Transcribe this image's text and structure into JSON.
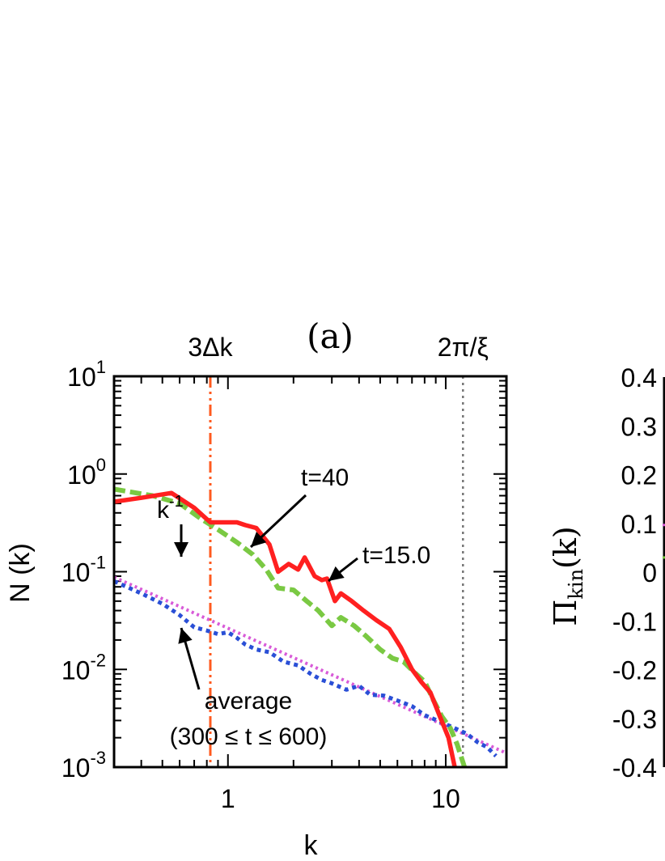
{
  "chart_data": [
    {
      "type": "line",
      "panel_label": "(a)",
      "xlabel": "k",
      "ylabel": "N (k)",
      "xscale": "log",
      "yscale": "log",
      "xlim": [
        0.3,
        19
      ],
      "ylim": [
        0.001,
        10
      ],
      "x_ticks": [
        {
          "value": 1,
          "label": "1"
        },
        {
          "value": 10,
          "label": "10"
        }
      ],
      "y_ticks": [
        {
          "value": 10,
          "base": "10",
          "exp": "1"
        },
        {
          "value": 1,
          "base": "10",
          "exp": "0"
        },
        {
          "value": 0.1,
          "base": "10",
          "exp": "-1"
        },
        {
          "value": 0.01,
          "base": "10",
          "exp": "-2"
        },
        {
          "value": 0.001,
          "base": "10",
          "exp": "-3"
        }
      ],
      "top_labels": [
        {
          "text": "3Δk",
          "at_k": 0.83
        },
        {
          "text": "2π/ξ",
          "at_k": 12.0
        }
      ],
      "vlines": [
        {
          "name": "3dk-line",
          "k": 0.83,
          "style": "dash-dot",
          "color": "#ff5a1f"
        },
        {
          "name": "2pi-xi-line",
          "k": 12.0,
          "style": "dotted",
          "color": "#777777"
        }
      ],
      "series": [
        {
          "name": "t=15.0",
          "color": "#ff2020",
          "style": "solid",
          "points": [
            [
              0.3,
              0.52
            ],
            [
              0.4,
              0.57
            ],
            [
              0.55,
              0.64
            ],
            [
              0.7,
              0.45
            ],
            [
              0.83,
              0.32
            ],
            [
              1.0,
              0.32
            ],
            [
              1.1,
              0.32
            ],
            [
              1.2,
              0.3
            ],
            [
              1.35,
              0.28
            ],
            [
              1.55,
              0.19
            ],
            [
              1.7,
              0.1
            ],
            [
              1.9,
              0.12
            ],
            [
              2.1,
              0.105
            ],
            [
              2.25,
              0.14
            ],
            [
              2.5,
              0.09
            ],
            [
              2.7,
              0.082
            ],
            [
              2.85,
              0.085
            ],
            [
              3.1,
              0.05
            ],
            [
              3.3,
              0.06
            ],
            [
              3.7,
              0.05
            ],
            [
              4.2,
              0.04
            ],
            [
              4.8,
              0.032
            ],
            [
              5.5,
              0.026
            ],
            [
              6.2,
              0.017
            ],
            [
              7.0,
              0.01
            ],
            [
              7.7,
              0.0075
            ],
            [
              8.5,
              0.0058
            ],
            [
              9.3,
              0.0035
            ],
            [
              10.3,
              0.002
            ],
            [
              11.0,
              0.001
            ]
          ]
        },
        {
          "name": "t=40",
          "color": "#7ac943",
          "style": "dashed",
          "points": [
            [
              0.3,
              0.7
            ],
            [
              0.45,
              0.6
            ],
            [
              0.6,
              0.5
            ],
            [
              0.75,
              0.35
            ],
            [
              0.9,
              0.27
            ],
            [
              1.1,
              0.2
            ],
            [
              1.3,
              0.15
            ],
            [
              1.5,
              0.105
            ],
            [
              1.7,
              0.068
            ],
            [
              2.0,
              0.065
            ],
            [
              2.3,
              0.05
            ],
            [
              2.6,
              0.04
            ],
            [
              3.0,
              0.028
            ],
            [
              3.3,
              0.034
            ],
            [
              3.8,
              0.028
            ],
            [
              4.3,
              0.022
            ],
            [
              5.0,
              0.016
            ],
            [
              5.7,
              0.013
            ],
            [
              6.4,
              0.012
            ],
            [
              7.3,
              0.009
            ],
            [
              8.0,
              0.0075
            ],
            [
              8.8,
              0.0048
            ],
            [
              9.6,
              0.0033
            ],
            [
              10.5,
              0.0025
            ],
            [
              11.3,
              0.0017
            ],
            [
              12.2,
              0.001
            ]
          ]
        },
        {
          "name": "average (300 ≤ t ≤ 600)",
          "color": "#2a4fd6",
          "style": "dotted",
          "points": [
            [
              0.3,
              0.08
            ],
            [
              0.4,
              0.06
            ],
            [
              0.5,
              0.047
            ],
            [
              0.6,
              0.036
            ],
            [
              0.7,
              0.027
            ],
            [
              0.8,
              0.025
            ],
            [
              0.9,
              0.023
            ],
            [
              1.0,
              0.024
            ],
            [
              1.1,
              0.021
            ],
            [
              1.2,
              0.018
            ],
            [
              1.35,
              0.016
            ],
            [
              1.55,
              0.015
            ],
            [
              1.8,
              0.012
            ],
            [
              2.1,
              0.011
            ],
            [
              2.4,
              0.009
            ],
            [
              2.7,
              0.0078
            ],
            [
              3.0,
              0.0072
            ],
            [
              3.5,
              0.0062
            ],
            [
              4.0,
              0.0068
            ],
            [
              4.5,
              0.0055
            ],
            [
              5.2,
              0.0054
            ],
            [
              6.0,
              0.0048
            ],
            [
              7.0,
              0.0042
            ],
            [
              8.0,
              0.0034
            ],
            [
              9.5,
              0.0029
            ],
            [
              11.0,
              0.0025
            ],
            [
              12.5,
              0.0022
            ],
            [
              14.0,
              0.0018
            ],
            [
              15.5,
              0.0016
            ],
            [
              17.0,
              0.0013
            ]
          ]
        },
        {
          "name": "k-1",
          "color": "#d85bd8",
          "style": "dotted",
          "points": [
            [
              0.3,
              0.088
            ],
            [
              19,
              0.00139
            ]
          ]
        }
      ],
      "annotations": [
        {
          "name": "t40-label",
          "text": "t=40"
        },
        {
          "name": "t15-label",
          "text": "t=15.0"
        },
        {
          "name": "kminus1-label",
          "base": "k",
          "exp": "-1"
        },
        {
          "name": "average-label",
          "lines": [
            "average",
            "(300 ≤ t ≤ 600)"
          ]
        }
      ]
    },
    {
      "type": "line",
      "partial": true,
      "ylabel_tex": "Πkin(k)",
      "ylabel_main": "Π",
      "ylabel_sub": "kin",
      "ylabel_arg": "(k)",
      "ylim": [
        -0.4,
        0.4
      ],
      "y_ticks": [
        "0.4",
        "0.3",
        "0.2",
        "0.1",
        "0",
        "-0.1",
        "-0.2",
        "-0.3",
        "-0.4"
      ]
    }
  ]
}
